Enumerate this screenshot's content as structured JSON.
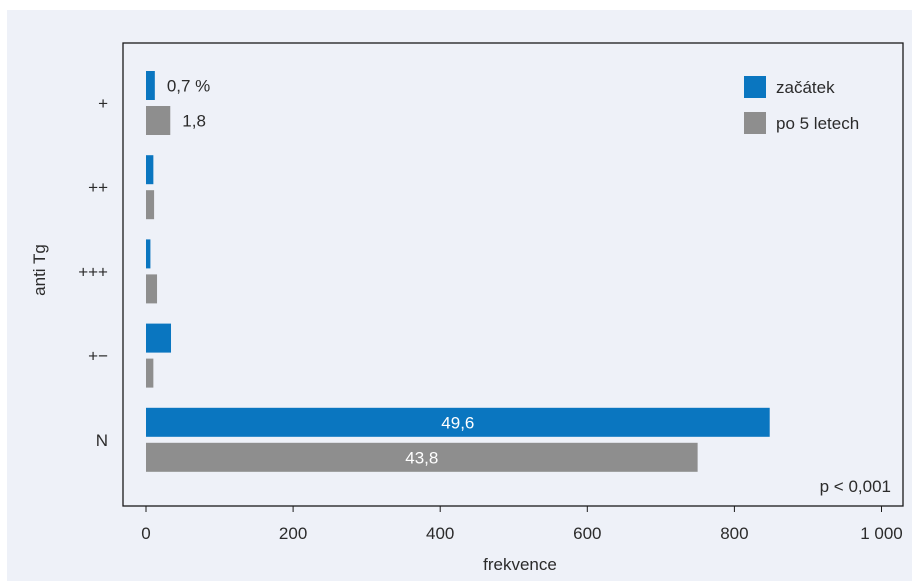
{
  "chart_data": {
    "type": "bar",
    "orientation": "horizontal",
    "categories": [
      "+",
      "++",
      "+++",
      "+−",
      "N"
    ],
    "series": [
      {
        "name": "začátek",
        "color": "#0a76c0",
        "values": [
          12,
          10,
          6,
          34,
          848
        ]
      },
      {
        "name": "po 5 letech",
        "color": "#8e8e8e",
        "values": [
          33,
          11,
          15,
          10,
          750
        ]
      }
    ],
    "data_labels": [
      {
        "series": 0,
        "category": 0,
        "text": "0,7 %",
        "inside": false
      },
      {
        "series": 1,
        "category": 0,
        "text": "1,8",
        "inside": false
      },
      {
        "series": 0,
        "category": 4,
        "text": "49,6",
        "inside": true
      },
      {
        "series": 1,
        "category": 4,
        "text": "43,8",
        "inside": true
      }
    ],
    "xlabel": "frekvence",
    "ylabel": "anti Tg",
    "xlim": [
      0,
      1000
    ],
    "xticks": [
      0,
      200,
      400,
      600,
      800,
      1000
    ],
    "xtick_labels": [
      "0",
      "200",
      "400",
      "600",
      "800",
      "1 000"
    ],
    "legend_position": "top-right",
    "annotation": "p < 0,001",
    "grid": false
  }
}
